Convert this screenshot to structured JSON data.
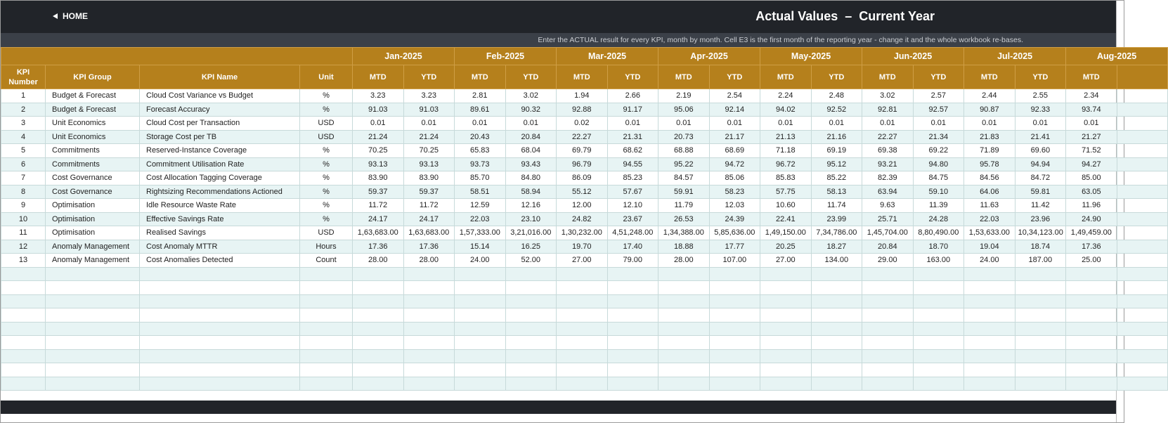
{
  "header": {
    "home": "HOME",
    "title": "Actual Values  –  Current Year",
    "note": "Enter the ACTUAL result for every KPI, month by month. Cell E3 is the first month of the reporting year - change it and the whole workbook re-bases."
  },
  "table": {
    "columns": [
      "KPI Number",
      "KPI Group",
      "KPI Name",
      "Unit"
    ],
    "months": [
      "Jan-2025",
      "Feb-2025",
      "Mar-2025",
      "Apr-2025",
      "May-2025",
      "Jun-2025",
      "Jul-2025",
      "Aug-2025"
    ],
    "sub": [
      "MTD",
      "YTD"
    ],
    "rows": [
      [
        "1",
        "Budget & Forecast",
        "Cloud Cost Variance vs Budget",
        "%",
        "3.23",
        "3.23",
        "2.81",
        "3.02",
        "1.94",
        "2.66",
        "2.19",
        "2.54",
        "2.24",
        "2.48",
        "3.02",
        "2.57",
        "2.44",
        "2.55",
        "2.34"
      ],
      [
        "2",
        "Budget & Forecast",
        "Forecast Accuracy",
        "%",
        "91.03",
        "91.03",
        "89.61",
        "90.32",
        "92.88",
        "91.17",
        "95.06",
        "92.14",
        "94.02",
        "92.52",
        "92.81",
        "92.57",
        "90.87",
        "92.33",
        "93.74"
      ],
      [
        "3",
        "Unit Economics",
        "Cloud Cost per Transaction",
        "USD",
        "0.01",
        "0.01",
        "0.01",
        "0.01",
        "0.02",
        "0.01",
        "0.01",
        "0.01",
        "0.01",
        "0.01",
        "0.01",
        "0.01",
        "0.01",
        "0.01",
        "0.01"
      ],
      [
        "4",
        "Unit Economics",
        "Storage Cost per TB",
        "USD",
        "21.24",
        "21.24",
        "20.43",
        "20.84",
        "22.27",
        "21.31",
        "20.73",
        "21.17",
        "21.13",
        "21.16",
        "22.27",
        "21.34",
        "21.83",
        "21.41",
        "21.27"
      ],
      [
        "5",
        "Commitments",
        "Reserved-Instance Coverage",
        "%",
        "70.25",
        "70.25",
        "65.83",
        "68.04",
        "69.79",
        "68.62",
        "68.88",
        "68.69",
        "71.18",
        "69.19",
        "69.38",
        "69.22",
        "71.89",
        "69.60",
        "71.52"
      ],
      [
        "6",
        "Commitments",
        "Commitment Utilisation Rate",
        "%",
        "93.13",
        "93.13",
        "93.73",
        "93.43",
        "96.79",
        "94.55",
        "95.22",
        "94.72",
        "96.72",
        "95.12",
        "93.21",
        "94.80",
        "95.78",
        "94.94",
        "94.27"
      ],
      [
        "7",
        "Cost Governance",
        "Cost Allocation Tagging Coverage",
        "%",
        "83.90",
        "83.90",
        "85.70",
        "84.80",
        "86.09",
        "85.23",
        "84.57",
        "85.06",
        "85.83",
        "85.22",
        "82.39",
        "84.75",
        "84.56",
        "84.72",
        "85.00"
      ],
      [
        "8",
        "Cost Governance",
        "Rightsizing Recommendations Actioned",
        "%",
        "59.37",
        "59.37",
        "58.51",
        "58.94",
        "55.12",
        "57.67",
        "59.91",
        "58.23",
        "57.75",
        "58.13",
        "63.94",
        "59.10",
        "64.06",
        "59.81",
        "63.05"
      ],
      [
        "9",
        "Optimisation",
        "Idle Resource Waste Rate",
        "%",
        "11.72",
        "11.72",
        "12.59",
        "12.16",
        "12.00",
        "12.10",
        "11.79",
        "12.03",
        "10.60",
        "11.74",
        "9.63",
        "11.39",
        "11.63",
        "11.42",
        "11.96"
      ],
      [
        "10",
        "Optimisation",
        "Effective Savings Rate",
        "%",
        "24.17",
        "24.17",
        "22.03",
        "23.10",
        "24.82",
        "23.67",
        "26.53",
        "24.39",
        "22.41",
        "23.99",
        "25.71",
        "24.28",
        "22.03",
        "23.96",
        "24.90"
      ],
      [
        "11",
        "Optimisation",
        "Realised Savings",
        "USD",
        "1,63,683.00",
        "1,63,683.00",
        "1,57,333.00",
        "3,21,016.00",
        "1,30,232.00",
        "4,51,248.00",
        "1,34,388.00",
        "5,85,636.00",
        "1,49,150.00",
        "7,34,786.00",
        "1,45,704.00",
        "8,80,490.00",
        "1,53,633.00",
        "10,34,123.00",
        "1,49,459.00"
      ],
      [
        "12",
        "Anomaly Management",
        "Cost Anomaly MTTR",
        "Hours",
        "17.36",
        "17.36",
        "15.14",
        "16.25",
        "19.70",
        "17.40",
        "18.88",
        "17.77",
        "20.25",
        "18.27",
        "20.84",
        "18.70",
        "19.04",
        "18.74",
        "17.36"
      ],
      [
        "13",
        "Anomaly Management",
        "Cost Anomalies Detected",
        "Count",
        "28.00",
        "28.00",
        "24.00",
        "52.00",
        "27.00",
        "79.00",
        "28.00",
        "107.00",
        "27.00",
        "134.00",
        "29.00",
        "163.00",
        "24.00",
        "187.00",
        "25.00"
      ]
    ]
  }
}
